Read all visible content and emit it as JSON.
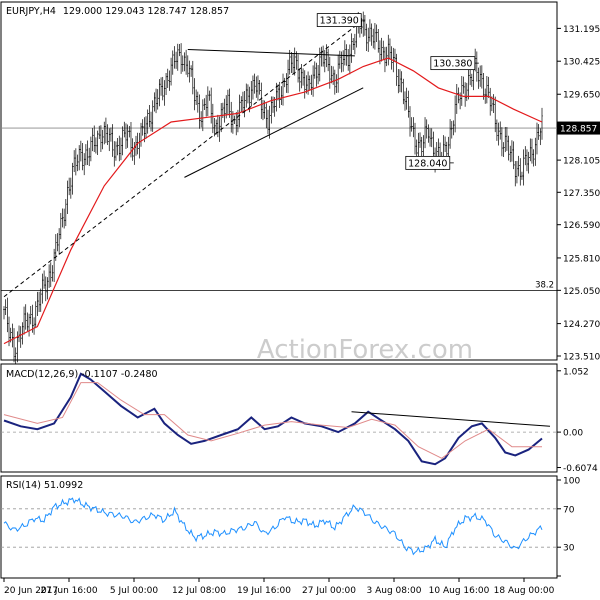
{
  "chart_data": [
    {
      "type": "candlestick",
      "title": "EURJPY,H4",
      "ohlc_header": "129.000 129.043 128.747 128.857",
      "watermark": "ActionForex.com",
      "ylim": [
        123.51,
        131.72
      ],
      "price_ticks": [
        "131.195",
        "130.425",
        "129.650",
        "128.860",
        "128.105",
        "127.350",
        "126.590",
        "125.810",
        "125.050",
        "124.270",
        "123.510"
      ],
      "current_price": "128.857",
      "price_path": [
        [
          0,
          124.6
        ],
        [
          3,
          124.0
        ],
        [
          6,
          123.7
        ],
        [
          10,
          124.1
        ],
        [
          14,
          124.3
        ],
        [
          18,
          124.5
        ],
        [
          22,
          124.9
        ],
        [
          26,
          125.3
        ],
        [
          30,
          125.8
        ],
        [
          34,
          126.5
        ],
        [
          38,
          127.4
        ],
        [
          42,
          127.9
        ],
        [
          46,
          128.3
        ],
        [
          50,
          128.2
        ],
        [
          54,
          128.5
        ],
        [
          58,
          128.8
        ],
        [
          62,
          128.6
        ],
        [
          66,
          128.4
        ],
        [
          70,
          128.5
        ],
        [
          74,
          128.7
        ],
        [
          78,
          128.4
        ],
        [
          82,
          128.6
        ],
        [
          86,
          129.1
        ],
        [
          90,
          129.4
        ],
        [
          94,
          129.7
        ],
        [
          98,
          130.1
        ],
        [
          102,
          130.4
        ],
        [
          106,
          130.6
        ],
        [
          110,
          130.3
        ],
        [
          114,
          129.6
        ],
        [
          118,
          129.2
        ],
        [
          122,
          129.5
        ],
        [
          126,
          128.9
        ],
        [
          130,
          129.1
        ],
        [
          134,
          129.4
        ],
        [
          138,
          129.0
        ],
        [
          142,
          129.3
        ],
        [
          146,
          129.7
        ],
        [
          150,
          129.9
        ],
        [
          154,
          129.4
        ],
        [
          158,
          129.1
        ],
        [
          162,
          129.4
        ],
        [
          166,
          129.8
        ],
        [
          170,
          130.2
        ],
        [
          174,
          130.4
        ],
        [
          178,
          130.1
        ],
        [
          182,
          129.7
        ],
        [
          186,
          130.2
        ],
        [
          190,
          130.5
        ],
        [
          194,
          130.3
        ],
        [
          198,
          130.0
        ],
        [
          202,
          130.4
        ],
        [
          206,
          130.6
        ],
        [
          210,
          131.0
        ],
        [
          214,
          131.3
        ],
        [
          218,
          131.1
        ],
        [
          222,
          130.9
        ],
        [
          226,
          130.7
        ],
        [
          230,
          130.6
        ],
        [
          234,
          130.3
        ],
        [
          238,
          129.9
        ],
        [
          242,
          129.1
        ],
        [
          246,
          128.6
        ],
        [
          250,
          128.4
        ],
        [
          254,
          128.8
        ],
        [
          258,
          128.3
        ],
        [
          262,
          128.1
        ],
        [
          266,
          128.6
        ],
        [
          270,
          129.3
        ],
        [
          274,
          129.7
        ],
        [
          278,
          130.0
        ],
        [
          282,
          130.2
        ],
        [
          286,
          130.0
        ],
        [
          290,
          129.6
        ],
        [
          294,
          129.0
        ],
        [
          298,
          128.6
        ],
        [
          302,
          128.3
        ],
        [
          306,
          128.0
        ],
        [
          310,
          127.8
        ],
        [
          314,
          128.2
        ],
        [
          318,
          128.5
        ],
        [
          322,
          128.9
        ]
      ],
      "moving_average": [
        [
          0,
          123.8
        ],
        [
          20,
          124.2
        ],
        [
          40,
          126.0
        ],
        [
          60,
          127.5
        ],
        [
          80,
          128.5
        ],
        [
          100,
          129.0
        ],
        [
          120,
          129.1
        ],
        [
          140,
          129.2
        ],
        [
          160,
          129.5
        ],
        [
          180,
          129.7
        ],
        [
          200,
          130.0
        ],
        [
          215,
          130.3
        ],
        [
          230,
          130.5
        ],
        [
          245,
          130.2
        ],
        [
          260,
          129.8
        ],
        [
          275,
          129.6
        ],
        [
          290,
          129.6
        ],
        [
          305,
          129.3
        ],
        [
          322,
          129.0
        ]
      ],
      "annotations": [
        {
          "label": "131.390",
          "idx": 215,
          "price": 131.39,
          "side": "left"
        },
        {
          "label": "130.380",
          "idx": 283,
          "price": 130.38,
          "side": "left"
        },
        {
          "label": "128.040",
          "idx": 268,
          "price": 128.04,
          "side": "left"
        },
        {
          "label": "38.2",
          "idx": 322,
          "price": 125.05,
          "side": "level"
        }
      ],
      "trendlines": [
        {
          "from": [
            110,
            130.7
          ],
          "to": [
            210,
            130.55
          ],
          "style": "solid"
        },
        {
          "from": [
            108,
            127.7
          ],
          "to": [
            215,
            129.8
          ],
          "style": "solid"
        },
        {
          "from": [
            0,
            124.9
          ],
          "to": [
            215,
            131.39
          ],
          "style": "dashed"
        }
      ]
    },
    {
      "type": "line",
      "title": "MACD(12,26,9) -0.1107 -0.2480",
      "ylim": [
        -0.65,
        1.1
      ],
      "ticks": [
        "1.052",
        "0.00",
        "-0.6074"
      ],
      "series": [
        {
          "role": "macd",
          "values": [
            [
              0,
              0.2
            ],
            [
              10,
              0.1
            ],
            [
              20,
              0.05
            ],
            [
              30,
              0.15
            ],
            [
              40,
              0.6
            ],
            [
              46,
              1.0
            ],
            [
              52,
              0.9
            ],
            [
              60,
              0.7
            ],
            [
              70,
              0.45
            ],
            [
              80,
              0.25
            ],
            [
              90,
              0.4
            ],
            [
              96,
              0.15
            ],
            [
              104,
              -0.05
            ],
            [
              112,
              -0.2
            ],
            [
              120,
              -0.15
            ],
            [
              130,
              -0.05
            ],
            [
              140,
              0.05
            ],
            [
              148,
              0.25
            ],
            [
              156,
              0.05
            ],
            [
              164,
              0.1
            ],
            [
              172,
              0.25
            ],
            [
              180,
              0.15
            ],
            [
              190,
              0.1
            ],
            [
              200,
              0.0
            ],
            [
              210,
              0.15
            ],
            [
              218,
              0.35
            ],
            [
              226,
              0.2
            ],
            [
              234,
              0.05
            ],
            [
              242,
              -0.15
            ],
            [
              250,
              -0.5
            ],
            [
              258,
              -0.55
            ],
            [
              264,
              -0.45
            ],
            [
              272,
              -0.1
            ],
            [
              280,
              0.1
            ],
            [
              286,
              0.15
            ],
            [
              294,
              -0.1
            ],
            [
              300,
              -0.35
            ],
            [
              306,
              -0.4
            ],
            [
              314,
              -0.3
            ],
            [
              322,
              -0.11
            ]
          ]
        },
        {
          "role": "signal",
          "values": [
            [
              0,
              0.3
            ],
            [
              20,
              0.15
            ],
            [
              35,
              0.25
            ],
            [
              46,
              0.85
            ],
            [
              56,
              0.85
            ],
            [
              70,
              0.55
            ],
            [
              84,
              0.3
            ],
            [
              96,
              0.3
            ],
            [
              110,
              -0.05
            ],
            [
              124,
              -0.15
            ],
            [
              140,
              -0.02
            ],
            [
              156,
              0.12
            ],
            [
              172,
              0.18
            ],
            [
              190,
              0.12
            ],
            [
              206,
              0.08
            ],
            [
              220,
              0.22
            ],
            [
              234,
              0.12
            ],
            [
              248,
              -0.25
            ],
            [
              262,
              -0.45
            ],
            [
              276,
              -0.15
            ],
            [
              290,
              0.05
            ],
            [
              304,
              -0.25
            ],
            [
              322,
              -0.25
            ]
          ]
        }
      ],
      "trendline": {
        "from": [
          208,
          0.35
        ],
        "to": [
          322,
          0.1
        ]
      }
    },
    {
      "type": "line",
      "title": "RSI(14) 51.0992",
      "ylim": [
        0,
        100
      ],
      "ticks": [
        "100",
        "70",
        "30",
        "0"
      ],
      "series": [
        {
          "role": "rsi",
          "values": [
            [
              0,
              55
            ],
            [
              6,
              48
            ],
            [
              12,
              52
            ],
            [
              18,
              60
            ],
            [
              24,
              58
            ],
            [
              30,
              72
            ],
            [
              36,
              76
            ],
            [
              42,
              80
            ],
            [
              48,
              74
            ],
            [
              54,
              70
            ],
            [
              60,
              66
            ],
            [
              66,
              64
            ],
            [
              72,
              62
            ],
            [
              78,
              56
            ],
            [
              84,
              60
            ],
            [
              90,
              64
            ],
            [
              96,
              58
            ],
            [
              102,
              68
            ],
            [
              108,
              52
            ],
            [
              114,
              40
            ],
            [
              120,
              42
            ],
            [
              126,
              46
            ],
            [
              132,
              44
            ],
            [
              138,
              48
            ],
            [
              144,
              50
            ],
            [
              150,
              56
            ],
            [
              156,
              44
            ],
            [
              162,
              50
            ],
            [
              168,
              62
            ],
            [
              174,
              56
            ],
            [
              180,
              58
            ],
            [
              186,
              52
            ],
            [
              192,
              58
            ],
            [
              198,
              50
            ],
            [
              204,
              62
            ],
            [
              210,
              72
            ],
            [
              216,
              66
            ],
            [
              222,
              56
            ],
            [
              228,
              50
            ],
            [
              234,
              44
            ],
            [
              240,
              30
            ],
            [
              246,
              25
            ],
            [
              252,
              28
            ],
            [
              258,
              38
            ],
            [
              264,
              30
            ],
            [
              270,
              50
            ],
            [
              276,
              60
            ],
            [
              282,
              62
            ],
            [
              288,
              58
            ],
            [
              294,
              42
            ],
            [
              300,
              36
            ],
            [
              306,
              28
            ],
            [
              312,
              38
            ],
            [
              318,
              46
            ],
            [
              322,
              51
            ]
          ]
        }
      ]
    }
  ],
  "x_axis": {
    "count": 323,
    "labels": [
      {
        "text": "20 Jun 2017",
        "idx": 0
      },
      {
        "text": "27 Jun 16:00",
        "idx": 46
      },
      {
        "text": "5 Jul 00:00",
        "idx": 92
      },
      {
        "text": "12 Jul 08:00",
        "idx": 138
      },
      {
        "text": "19 Jul 16:00",
        "idx": 184
      },
      {
        "text": "27 Jul 00:00",
        "idx": 230
      },
      {
        "text": "3 Aug 08:00",
        "idx": 276
      },
      {
        "text": "10 Aug 16:00",
        "idx": 322
      },
      {
        "text": "18 Aug 00:00",
        "idx": 368
      }
    ]
  },
  "colors": {
    "candle": "#000000",
    "moving_average": "#e31a1c",
    "macd_line": "#1a237e",
    "signal_line": "#e08a8a",
    "rsi_line": "#1e90ff",
    "level": "#000000",
    "grid_dash": "#999999",
    "watermark": "#cccccc"
  }
}
